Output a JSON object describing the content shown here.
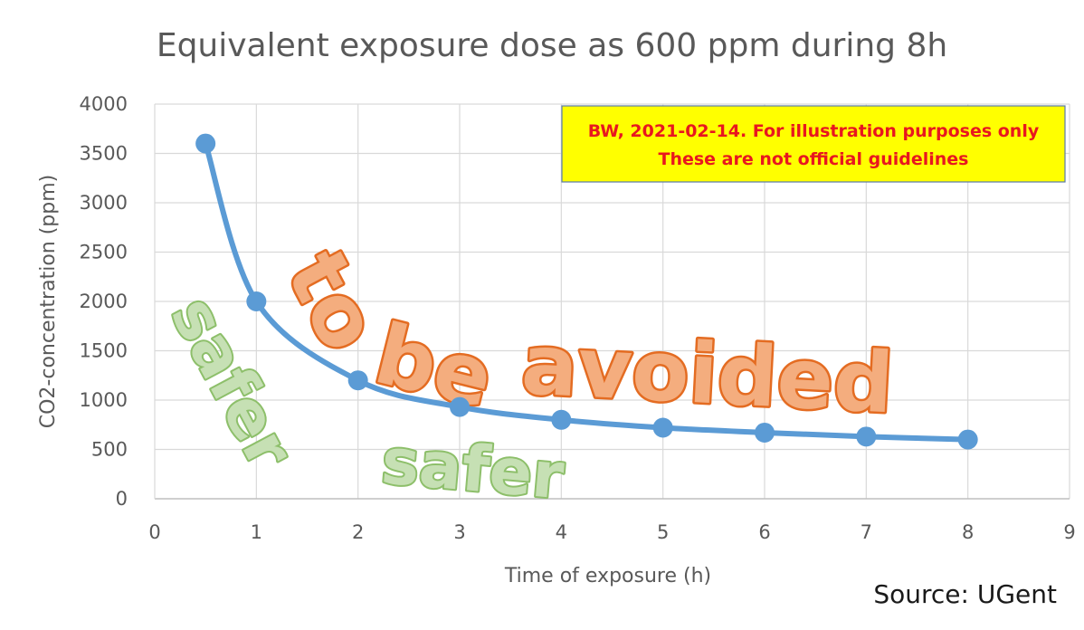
{
  "chart_data": {
    "type": "line",
    "title": "Equivalent exposure dose as 600 ppm during 8h",
    "xlabel": "Time of exposure (h)",
    "ylabel": "CO2-concentration (ppm)",
    "xlim": [
      0,
      9
    ],
    "ylim": [
      0,
      4000
    ],
    "x_ticks": [
      0,
      1,
      2,
      3,
      4,
      5,
      6,
      7,
      8,
      9
    ],
    "y_ticks": [
      0,
      500,
      1000,
      1500,
      2000,
      2500,
      3000,
      3500,
      4000
    ],
    "grid": true,
    "series": [
      {
        "x": [
          0.5,
          1,
          2,
          3,
          4,
          5,
          6,
          7,
          8
        ],
        "y": [
          3600,
          2000,
          1200,
          930,
          800,
          720,
          670,
          630,
          600
        ],
        "color": "#5b9bd5",
        "smooth": true,
        "markers": true
      }
    ],
    "annotations": {
      "note_lines": [
        "BW, 2021-02-14. For illustration purposes only",
        "These are not official guidelines"
      ],
      "note_background": "#ffff00",
      "note_text_color": "#e8171f",
      "above_curve_text": "to be avoided",
      "below_curve_text_1": "safer",
      "below_curve_text_2": "safer"
    },
    "source": "Source: UGent"
  }
}
